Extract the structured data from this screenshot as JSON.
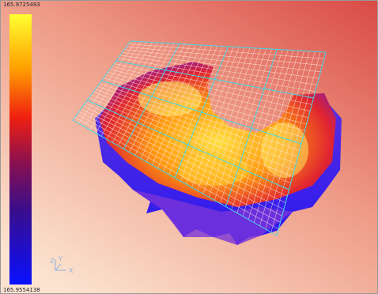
{
  "colorbar": {
    "max_label": "165.9725493",
    "min_label": "165.9554138"
  },
  "axes": {
    "z": "Z",
    "y": "Y",
    "x": "X"
  }
}
